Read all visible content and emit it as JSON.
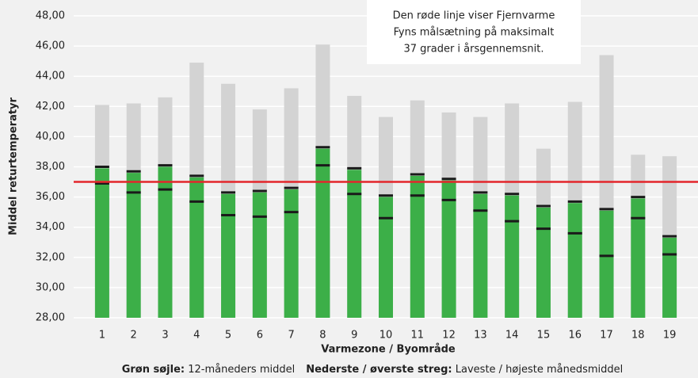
{
  "chart_data": {
    "type": "bar",
    "ylabel": "Middel returtemperatyr",
    "xlabel": "Varmezone / Byområde",
    "categories": [
      "1",
      "2",
      "3",
      "4",
      "5",
      "6",
      "7",
      "8",
      "9",
      "10",
      "11",
      "12",
      "13",
      "14",
      "15",
      "16",
      "17",
      "18",
      "19"
    ],
    "series": [
      {
        "color": "#d3d3d3",
        "values": [
          42.1,
          42.2,
          42.6,
          44.9,
          43.5,
          41.8,
          43.2,
          46.1,
          42.7,
          41.3,
          42.4,
          41.6,
          41.3,
          42.2,
          39.2,
          42.3,
          45.4,
          38.8,
          38.7
        ]
      },
      {
        "color": "#3caf48",
        "values": [
          37.9,
          37.6,
          38.0,
          37.3,
          36.2,
          36.3,
          36.5,
          39.2,
          37.8,
          36.0,
          37.4,
          37.1,
          36.2,
          36.1,
          35.3,
          35.6,
          35.1,
          35.9,
          33.3
        ]
      }
    ],
    "low": {
      "color": "#1a1a1a",
      "values": [
        36.9,
        36.3,
        36.5,
        35.7,
        34.8,
        34.7,
        35.0,
        38.1,
        36.2,
        34.6,
        36.1,
        35.8,
        35.1,
        34.4,
        33.9,
        33.6,
        32.1,
        34.6,
        32.2
      ]
    },
    "high": {
      "color": "#1a1a1a",
      "values": [
        38.0,
        37.7,
        38.1,
        37.4,
        36.3,
        36.4,
        36.6,
        39.3,
        37.9,
        36.1,
        37.5,
        37.2,
        36.3,
        36.2,
        35.4,
        35.7,
        35.2,
        36.0,
        33.4
      ]
    },
    "target": {
      "value": 37,
      "color": "#e3262b"
    },
    "annotation": [
      "Den røde linje viser Fjernvarme",
      "Fyns målsætning på maksimalt",
      "37 grader i årsgennemsnit."
    ],
    "legend": [
      {
        "key": "Grøn søjle:",
        "text": " 12-måneders middel"
      },
      {
        "key": "Nederste / øverste streg:",
        "text": " Laveste / højeste månedsmiddel"
      }
    ],
    "ylim": [
      28,
      48
    ],
    "yticks": [
      {
        "value": 28,
        "label": "28,00"
      },
      {
        "value": 30,
        "label": "30,00"
      },
      {
        "value": 32,
        "label": "32,00"
      },
      {
        "value": 34,
        "label": "34,00"
      },
      {
        "value": 36,
        "label": "36,00"
      },
      {
        "value": 38,
        "label": "38,00"
      },
      {
        "value": 40,
        "label": "40,00"
      },
      {
        "value": 42,
        "label": "42,00"
      },
      {
        "value": 44,
        "label": "44,00"
      },
      {
        "value": 46,
        "label": "46,00"
      },
      {
        "value": 48,
        "label": "48,00"
      }
    ],
    "grid": true
  }
}
